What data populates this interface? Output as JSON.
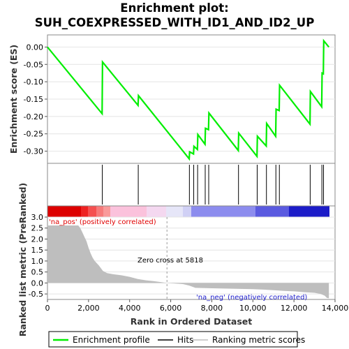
{
  "title_line1": "Enrichment plot:",
  "title_line2": "SUH_COEXPRESSED_WITH_ID1_AND_ID2_UP",
  "colors": {
    "es_line": "#00ee00",
    "hits": "#000000",
    "metric_fill": "#bebebe",
    "pos_text": "#e00000",
    "neg_text": "#2020cc",
    "zero_line": "#999999"
  },
  "chart_data": [
    {
      "type": "line",
      "name": "enrichment-profile",
      "ylabel": "Enrichment score (ES)",
      "xlim": [
        0,
        14000
      ],
      "ylim": [
        -0.335,
        0.035
      ],
      "yticks": [
        0.0,
        -0.05,
        -0.1,
        -0.15,
        -0.2,
        -0.25,
        -0.3
      ],
      "ytick_labels": [
        "0.00",
        "-0.05",
        "-0.10",
        "-0.15",
        "-0.20",
        "-0.25",
        "-0.30"
      ],
      "x": [
        0,
        2660,
        2680,
        4410,
        4430,
        6900,
        6920,
        7110,
        7130,
        7300,
        7320,
        7670,
        7690,
        7840,
        7860,
        9290,
        9310,
        10200,
        10220,
        10650,
        10670,
        11110,
        11130,
        11280,
        11300,
        12780,
        12800,
        13350,
        13370,
        13430,
        13450,
        13700
      ],
      "y": [
        0.0,
        -0.192,
        -0.043,
        -0.168,
        -0.14,
        -0.322,
        -0.302,
        -0.308,
        -0.286,
        -0.295,
        -0.252,
        -0.28,
        -0.234,
        -0.238,
        -0.19,
        -0.298,
        -0.248,
        -0.315,
        -0.257,
        -0.285,
        -0.22,
        -0.257,
        -0.179,
        -0.183,
        -0.11,
        -0.222,
        -0.128,
        -0.172,
        -0.075,
        -0.077,
        0.018,
        0.0
      ]
    },
    {
      "type": "bar",
      "name": "hits",
      "x": [
        2670,
        4420,
        6910,
        7120,
        7310,
        7680,
        7850,
        9300,
        10210,
        10660,
        11120,
        11290,
        12790,
        13360,
        13440
      ]
    },
    {
      "type": "area",
      "name": "ranked-list-metric",
      "xlabel": "Rank in Ordered Dataset",
      "ylabel": "Ranked list metric (PreRanked)",
      "xlim": [
        0,
        14000
      ],
      "ylim": [
        -0.75,
        3.0
      ],
      "xticks": [
        0,
        2000,
        4000,
        6000,
        8000,
        10000,
        12000,
        14000
      ],
      "xtick_labels": [
        "0",
        "2,000",
        "4,000",
        "6,000",
        "8,000",
        "10,000",
        "12,000",
        "14,000"
      ],
      "yticks": [
        3.0,
        2.5,
        2.0,
        1.5,
        1.0,
        0.5,
        0.0,
        -0.5
      ],
      "ytick_labels": [
        "3.0",
        "2.5",
        "2.0",
        "1.5",
        "1.0",
        "0.5",
        "0.0",
        "-0.5"
      ],
      "x": [
        0,
        1500,
        1600,
        1700,
        1800,
        1900,
        2000,
        2100,
        2200,
        2300,
        2500,
        2700,
        2900,
        3200,
        3600,
        4000,
        4400,
        4800,
        5200,
        5818,
        6600,
        6900,
        7200,
        8000,
        9000,
        10000,
        10500,
        11000,
        11500,
        12000,
        12500,
        13000,
        13300,
        13500,
        13600,
        13700
      ],
      "values": [
        2.62,
        2.62,
        2.5,
        2.3,
        2.1,
        1.9,
        1.6,
        1.35,
        1.15,
        1.0,
        0.8,
        0.55,
        0.45,
        0.4,
        0.35,
        0.28,
        0.18,
        0.12,
        0.08,
        0.0,
        -0.05,
        -0.12,
        -0.22,
        -0.24,
        -0.26,
        -0.28,
        -0.3,
        -0.33,
        -0.36,
        -0.38,
        -0.42,
        -0.45,
        -0.5,
        -0.58,
        -0.68,
        -0.7
      ],
      "annotations": {
        "pos": "'na_pos' (positively correlated)",
        "neg": "'na_neg' (negatively correlated)",
        "zero": "Zero cross at 5818",
        "zero_x": 5818
      }
    }
  ],
  "legend": {
    "items": [
      "Enrichment profile",
      "Hits",
      "Ranking metric scores"
    ]
  }
}
